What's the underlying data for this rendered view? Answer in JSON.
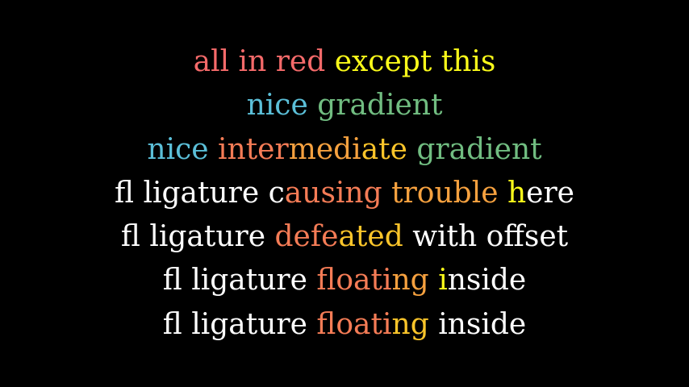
{
  "colors": {
    "background": "#000000",
    "white": "#ffffff",
    "red": "#f56a6a",
    "yellow": "#fbfb1a",
    "blue": "#5bbfd8",
    "green": "#71bd81",
    "orange": "#f6a13f",
    "orange_red": "#f57c56"
  },
  "lines": [
    {
      "segments": [
        {
          "text": "all in red ",
          "color": "#f56a6a"
        },
        {
          "text": "except this",
          "color": "#fbfb1a"
        }
      ]
    },
    {
      "segments": [
        {
          "text": "nice ",
          "color": "#5bbfd8"
        },
        {
          "text": "gradient",
          "color": "#71bd81"
        }
      ]
    },
    {
      "segments": [
        {
          "text": "nice ",
          "color": "#5bbfd8"
        },
        {
          "text": "inter",
          "color": "#f57c56"
        },
        {
          "text": "medi",
          "color": "#f6a13f"
        },
        {
          "text": "ate ",
          "color": "#fbc52a"
        },
        {
          "text": "gradient",
          "color": "#71bd81"
        }
      ]
    },
    {
      "segments": [
        {
          "text": "fl ligature c",
          "color": "#ffffff"
        },
        {
          "text": "ausing ",
          "color": "#f57c56"
        },
        {
          "text": "trouble ",
          "color": "#f6a13f"
        },
        {
          "text": "h",
          "color": "#fbfb1a"
        },
        {
          "text": "ere",
          "color": "#ffffff"
        }
      ]
    },
    {
      "segments": [
        {
          "text": "fl ligature ",
          "color": "#ffffff"
        },
        {
          "text": "defe",
          "color": "#f57c56"
        },
        {
          "text": "ated",
          "color": "#fbc52a"
        },
        {
          "text": " with offset",
          "color": "#ffffff"
        }
      ]
    },
    {
      "segments": [
        {
          "text": "fl ligature ",
          "color": "#ffffff"
        },
        {
          "text": "floati",
          "color": "#f57c56"
        },
        {
          "text": "ng ",
          "color": "#f6a13f"
        },
        {
          "text": "i",
          "color": "#fbfb1a"
        },
        {
          "text": "nside",
          "color": "#ffffff"
        }
      ]
    },
    {
      "segments": [
        {
          "text": "fl ligature ",
          "color": "#ffffff"
        },
        {
          "text": "floati",
          "color": "#f57c56"
        },
        {
          "text": "ng",
          "color": "#fbc52a"
        },
        {
          "text": " inside",
          "color": "#ffffff"
        }
      ]
    }
  ]
}
